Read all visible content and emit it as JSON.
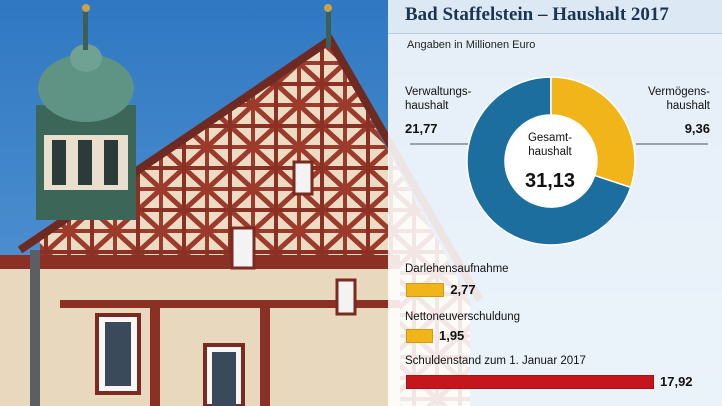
{
  "title": "Bad Staffelstein – Haushalt 2017",
  "subtitle": "Angaben in Millionen Euro",
  "chart_data": [
    {
      "type": "pie",
      "labels": [
        "Verwaltungshaushalt",
        "Vermögenshaushalt"
      ],
      "values": [
        21.77,
        9.36
      ],
      "colors": [
        "#1c6e9e",
        "#f2b519"
      ],
      "center_label": "Gesamthaushalt",
      "center_value": 31.13,
      "hole": "donut"
    },
    {
      "type": "bar",
      "orientation": "horizontal",
      "categories": [
        "Darlehensaufnahme",
        "Nettoneuverschuldung",
        "Schuldenstand zum 1. Januar 2017"
      ],
      "values": [
        2.77,
        1.95,
        17.92
      ],
      "colors": [
        "#f2b519",
        "#f2b519",
        "#c4161c"
      ]
    }
  ],
  "labels": {
    "verwaltung_line1": "Verwaltungs-",
    "verwaltung_line2": "haushalt",
    "verwaltung_value": "21,77",
    "vermoegen_line1": "Vermögens-",
    "vermoegen_line2": "haushalt",
    "vermoegen_value": "9,36",
    "gesamt_line1": "Gesamt-",
    "gesamt_line2": "haushalt",
    "gesamt_value": "31,13",
    "darlehen": "Darlehensaufnahme",
    "darlehen_value": "2,77",
    "netto": "Nettoneuverschuldung",
    "netto_value": "1,95",
    "schulden": "Schuldenstand zum 1. Januar 2017",
    "schulden_value": "17,92"
  }
}
